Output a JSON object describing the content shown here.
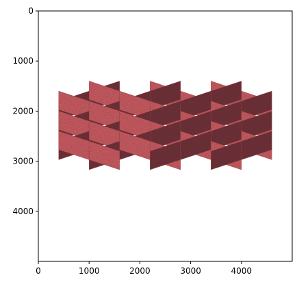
{
  "chart_data": {
    "type": "image",
    "title": "",
    "xlabel": "",
    "ylabel": "",
    "xlim": [
      0,
      5000
    ],
    "ylim": [
      5000,
      0
    ],
    "xticks": [
      0,
      1000,
      2000,
      3000,
      4000
    ],
    "yticks": [
      0,
      1000,
      2000,
      3000,
      4000
    ],
    "xtick_labels": [
      "0",
      "1000",
      "2000",
      "3000",
      "4000"
    ],
    "ytick_labels": [
      "0",
      "1000",
      "2000",
      "3000",
      "4000"
    ],
    "grid": false,
    "image_content": "isometric 3D lattice grid of textured panels",
    "colors": {
      "panel_light": "#c75a5f",
      "panel_dark": "#6b2f33",
      "panel_mid": "#9e4448",
      "axis": "#000000"
    }
  }
}
